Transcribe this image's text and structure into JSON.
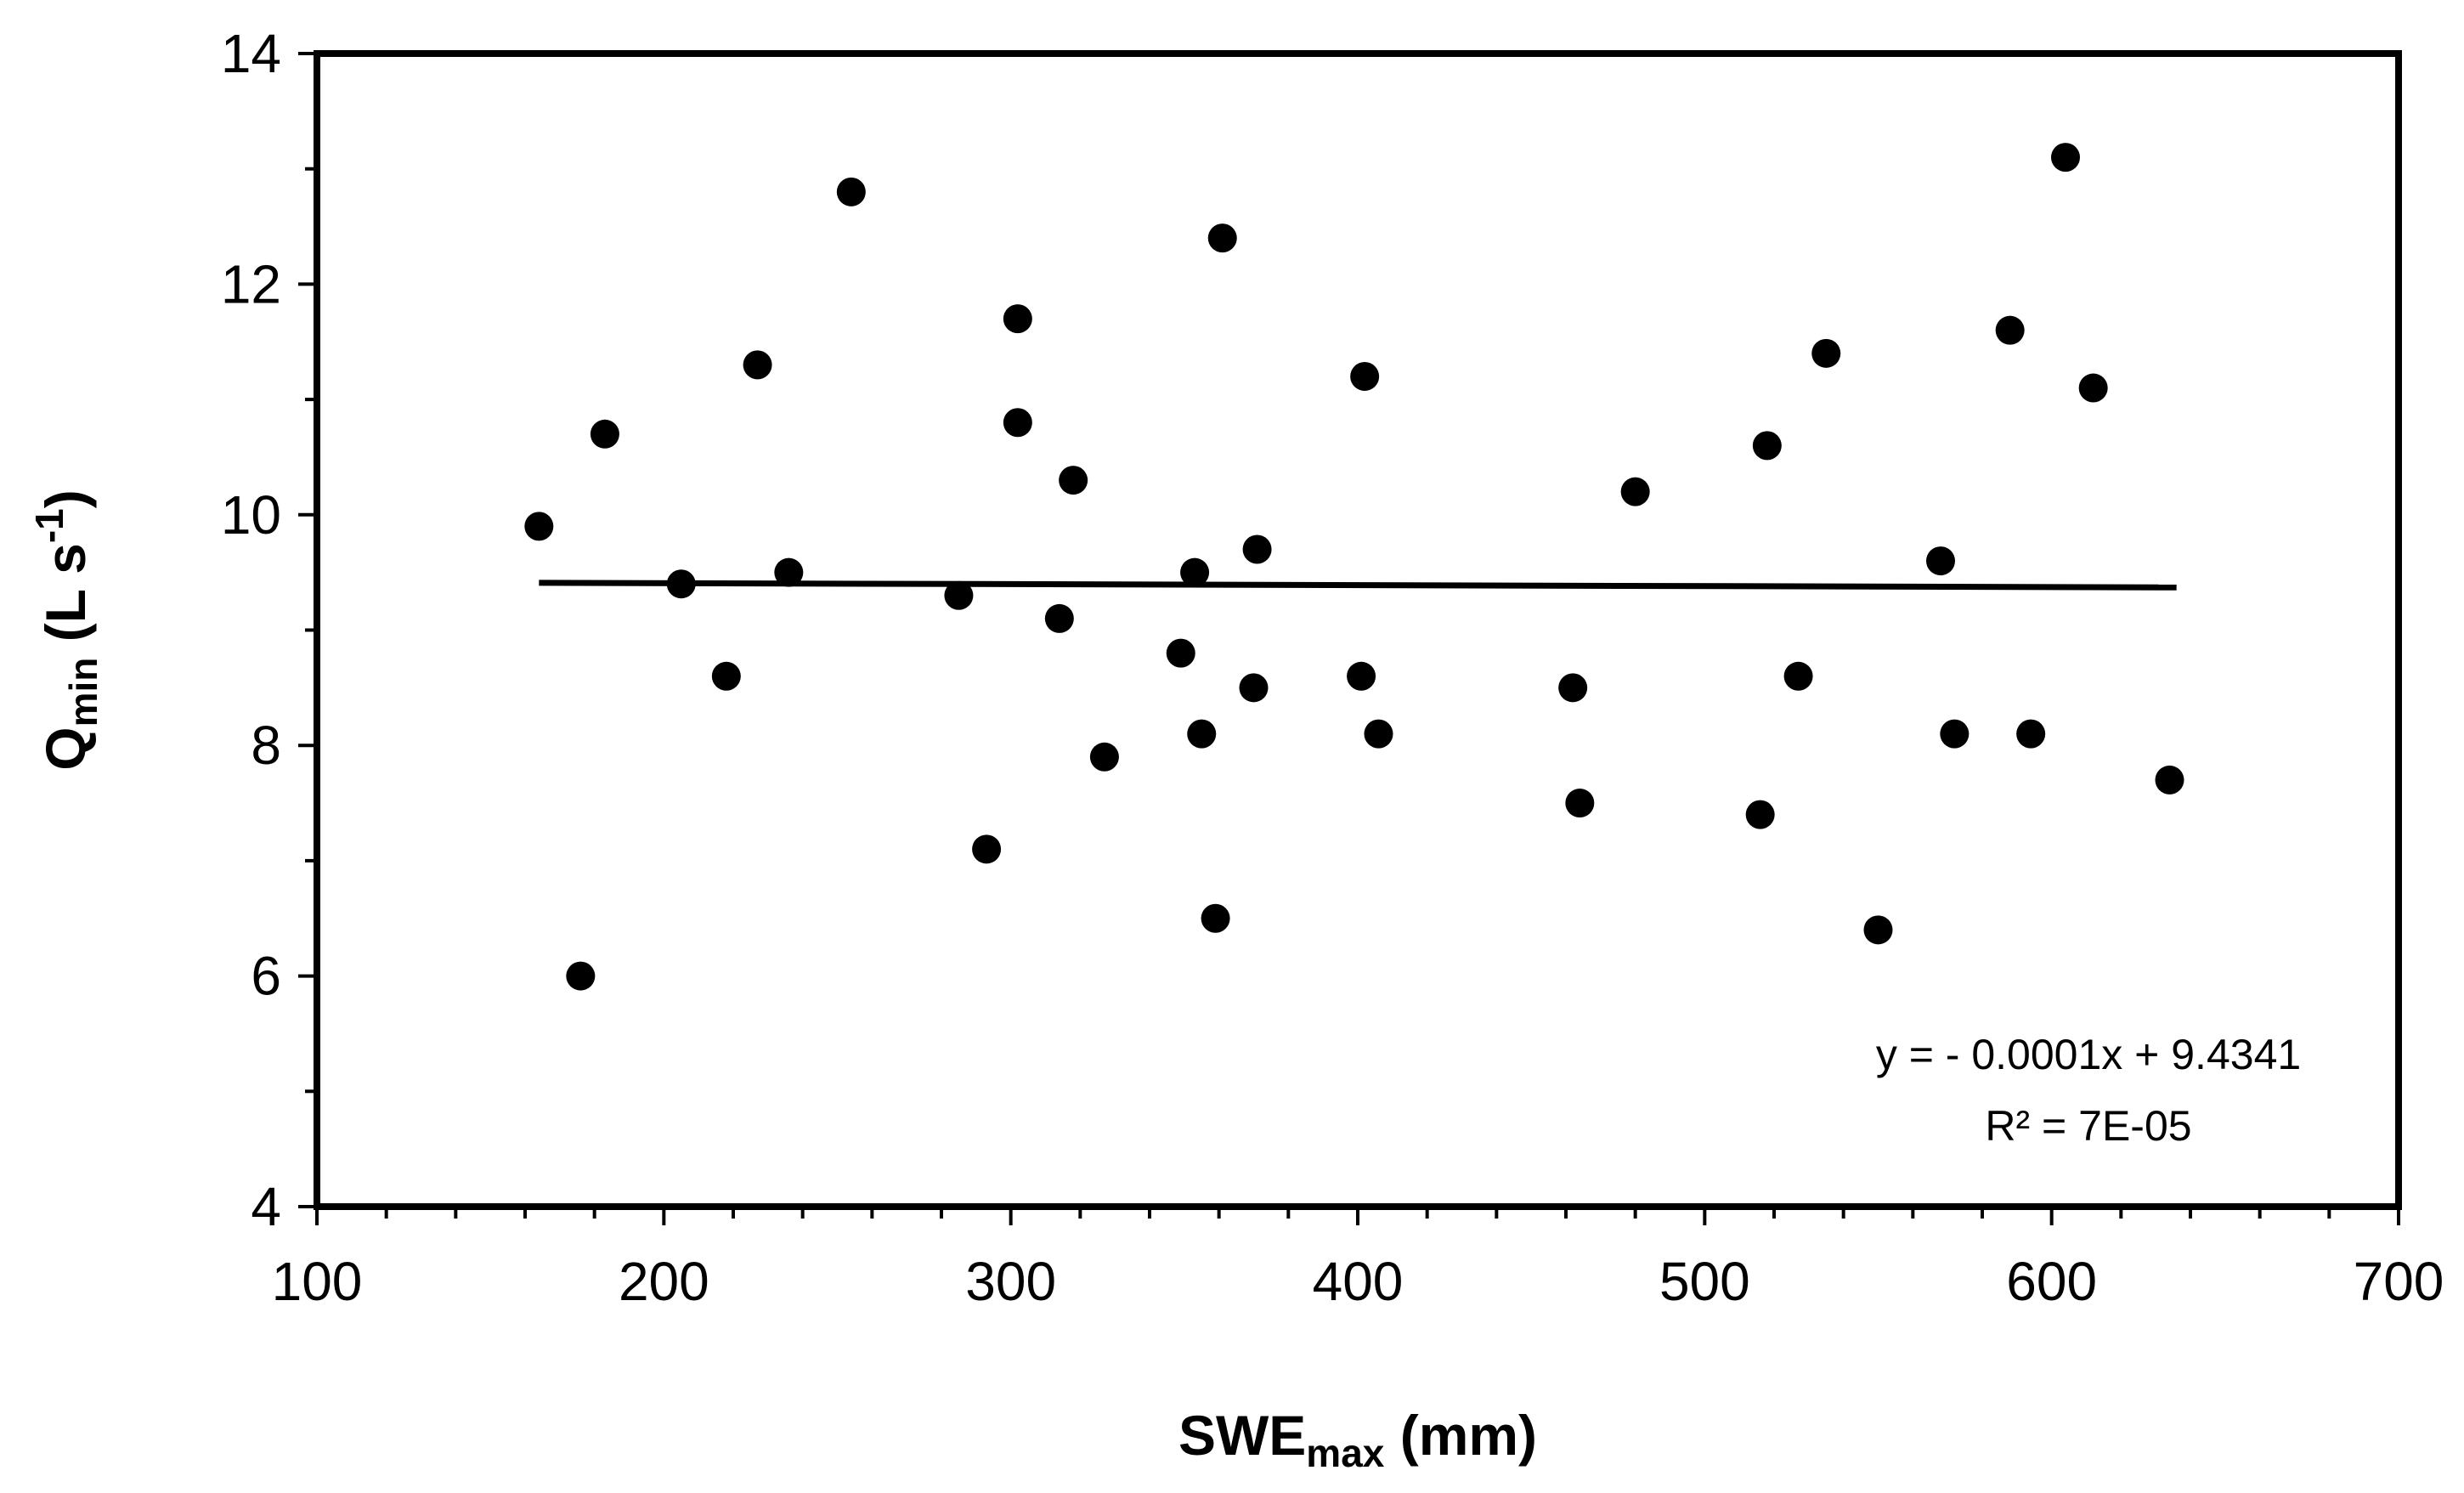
{
  "chart_data": {
    "type": "scatter",
    "xlabel": {
      "main": "SWE",
      "sub": "max",
      "rest": " (mm)"
    },
    "ylabel": {
      "main": "Q",
      "sub": "min",
      "rest": " (L s",
      "sup": "-1",
      "end": ")"
    },
    "xlim": [
      100,
      700
    ],
    "ylim": [
      4,
      14
    ],
    "x_major_ticks": [
      100,
      200,
      300,
      400,
      500,
      600,
      700
    ],
    "x_tick_labels": [
      "100",
      "200",
      "300",
      "400",
      "500",
      "600",
      "700"
    ],
    "x_minor_step": 20,
    "y_major_ticks": [
      4,
      6,
      8,
      10,
      12,
      14
    ],
    "y_tick_labels": [
      "4",
      "6",
      "8",
      "10",
      "12",
      "14"
    ],
    "y_minor_step": 1,
    "grid": false,
    "legend": "none",
    "marker_color": "#000000",
    "points": [
      {
        "x": 164,
        "y": 9.9
      },
      {
        "x": 176,
        "y": 6.0
      },
      {
        "x": 183,
        "y": 10.7
      },
      {
        "x": 205,
        "y": 9.4
      },
      {
        "x": 218,
        "y": 8.6
      },
      {
        "x": 227,
        "y": 11.3
      },
      {
        "x": 236,
        "y": 9.5
      },
      {
        "x": 254,
        "y": 12.8
      },
      {
        "x": 285,
        "y": 9.3
      },
      {
        "x": 293,
        "y": 7.1
      },
      {
        "x": 302,
        "y": 11.7
      },
      {
        "x": 302,
        "y": 10.8
      },
      {
        "x": 314,
        "y": 9.1
      },
      {
        "x": 318,
        "y": 10.3
      },
      {
        "x": 327,
        "y": 7.9
      },
      {
        "x": 349,
        "y": 8.8
      },
      {
        "x": 353,
        "y": 9.5
      },
      {
        "x": 355,
        "y": 8.1
      },
      {
        "x": 359,
        "y": 6.5
      },
      {
        "x": 361,
        "y": 12.4
      },
      {
        "x": 370,
        "y": 8.5
      },
      {
        "x": 371,
        "y": 9.7
      },
      {
        "x": 401,
        "y": 8.6
      },
      {
        "x": 402,
        "y": 11.2
      },
      {
        "x": 406,
        "y": 8.1
      },
      {
        "x": 462,
        "y": 8.5
      },
      {
        "x": 464,
        "y": 7.5
      },
      {
        "x": 480,
        "y": 10.2
      },
      {
        "x": 516,
        "y": 7.4
      },
      {
        "x": 518,
        "y": 10.6
      },
      {
        "x": 527,
        "y": 8.6
      },
      {
        "x": 535,
        "y": 11.4
      },
      {
        "x": 550,
        "y": 6.4
      },
      {
        "x": 568,
        "y": 9.6
      },
      {
        "x": 572,
        "y": 8.1
      },
      {
        "x": 588,
        "y": 11.6
      },
      {
        "x": 594,
        "y": 8.1
      },
      {
        "x": 604,
        "y": 13.1
      },
      {
        "x": 612,
        "y": 11.1
      },
      {
        "x": 634,
        "y": 7.7
      }
    ],
    "trendline": {
      "x_range": [
        164,
        636
      ],
      "y_range": [
        9.41,
        9.37
      ],
      "equation": "y = - 0.0001x + 9.4341",
      "r_squared": "R² = 7E-05"
    }
  }
}
